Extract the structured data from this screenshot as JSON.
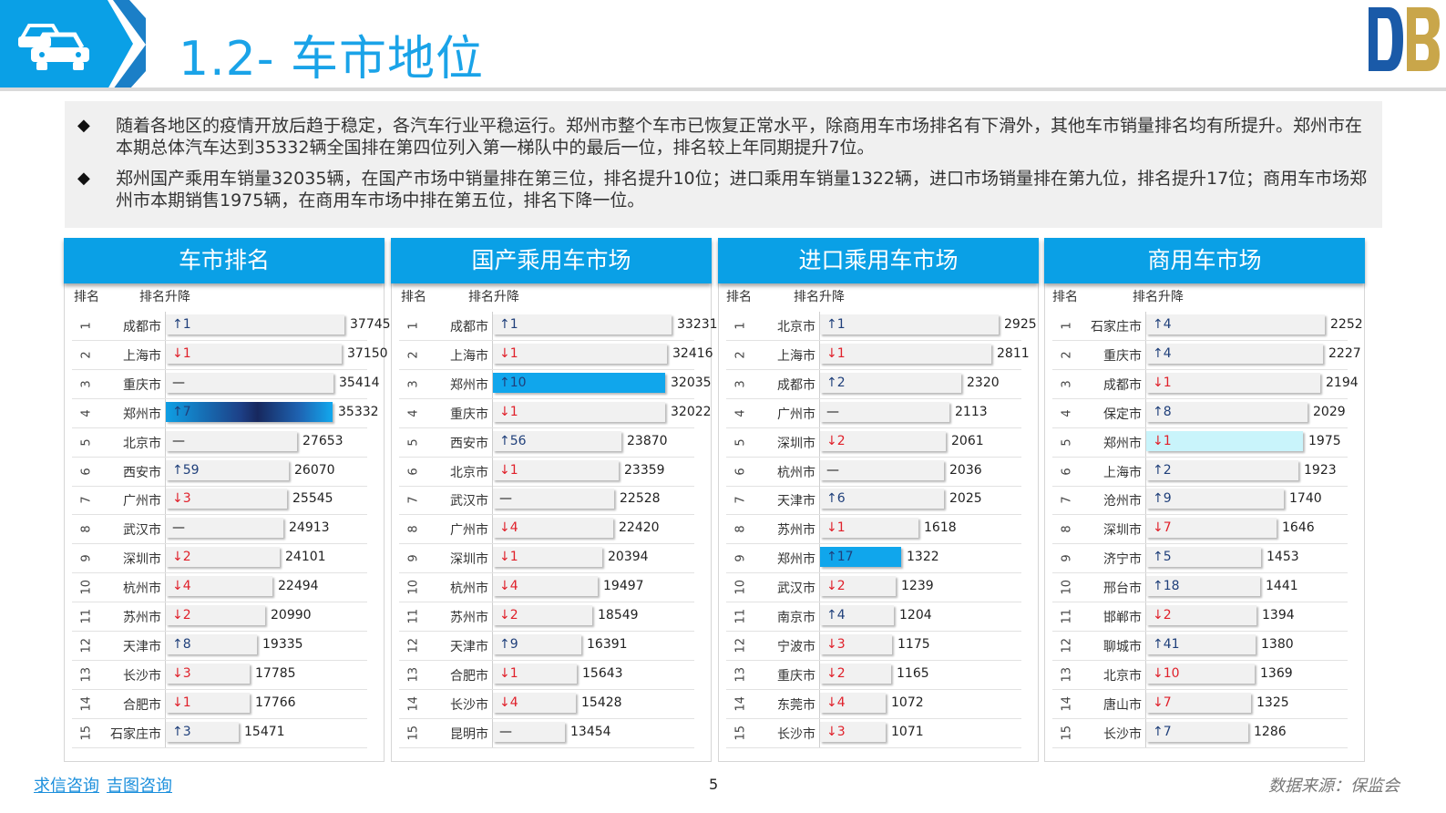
{
  "header": {
    "title": "1.2- 车市地位",
    "colors": {
      "accent": "#1aa3e8",
      "banner": "#0aa0e6",
      "banner_dark": "#1b7fc7"
    },
    "icon": "car-icon",
    "logo": "logo-mark"
  },
  "summary": {
    "bullets": [
      {
        "marker": "◆",
        "text": "随着各地区的疫情开放后趋于稳定，各汽车行业平稳运行。郑州市整个车市已恢复正常水平，除商用车市场排名有下滑外，其他车市销量排名均有所提升。郑州市在本期总体汽车达到35332辆全国排在第四位列入第一梯队中的最后一位，排名较上年同期提升7位。"
      },
      {
        "marker": "◆",
        "text": "郑州国产乘用车销量32035辆，在国产市场中销量排在第三位，排名提升10位；进口乘用车销量1322辆，进口市场销量排在第九位，排名提升17位；商用车市场郑州市本期销售1975辆，在商用车市场中排在第五位，排名下降一位。"
      }
    ]
  },
  "panels": [
    {
      "title": "车市排名",
      "col_rank": "排名",
      "col_change": "排名升降",
      "max": 37745,
      "rows": [
        {
          "rank": "1",
          "city": "成都市",
          "change": "↑1",
          "dir": "up",
          "value": 37745
        },
        {
          "rank": "2",
          "city": "上海市",
          "change": "↓1",
          "dir": "down",
          "value": 37150
        },
        {
          "rank": "3",
          "city": "重庆市",
          "change": "—",
          "dir": "flat",
          "value": 35414
        },
        {
          "rank": "4",
          "city": "郑州市",
          "change": "↑7",
          "dir": "up",
          "value": 35332,
          "highlight": "grad"
        },
        {
          "rank": "5",
          "city": "北京市",
          "change": "—",
          "dir": "flat",
          "value": 27653
        },
        {
          "rank": "6",
          "city": "西安市",
          "change": "↑59",
          "dir": "up",
          "value": 26070
        },
        {
          "rank": "7",
          "city": "广州市",
          "change": "↓3",
          "dir": "down",
          "value": 25545
        },
        {
          "rank": "8",
          "city": "武汉市",
          "change": "—",
          "dir": "flat",
          "value": 24913
        },
        {
          "rank": "9",
          "city": "深圳市",
          "change": "↓2",
          "dir": "down",
          "value": 24101
        },
        {
          "rank": "10",
          "city": "杭州市",
          "change": "↓4",
          "dir": "down",
          "value": 22494
        },
        {
          "rank": "11",
          "city": "苏州市",
          "change": "↓2",
          "dir": "down",
          "value": 20990
        },
        {
          "rank": "12",
          "city": "天津市",
          "change": "↑8",
          "dir": "up",
          "value": 19335
        },
        {
          "rank": "13",
          "city": "长沙市",
          "change": "↓3",
          "dir": "down",
          "value": 17785
        },
        {
          "rank": "14",
          "city": "合肥市",
          "change": "↓1",
          "dir": "down",
          "value": 17766
        },
        {
          "rank": "15",
          "city": "石家庄市",
          "change": "↑3",
          "dir": "up",
          "value": 15471
        }
      ]
    },
    {
      "title": "国产乘用车市场",
      "col_rank": "排名",
      "col_change": "排名升降",
      "max": 33231,
      "rows": [
        {
          "rank": "1",
          "city": "成都市",
          "change": "↑1",
          "dir": "up",
          "value": 33231
        },
        {
          "rank": "2",
          "city": "上海市",
          "change": "↓1",
          "dir": "down",
          "value": 32416
        },
        {
          "rank": "3",
          "city": "郑州市",
          "change": "↑10",
          "dir": "up",
          "value": 32035,
          "highlight": "blue"
        },
        {
          "rank": "4",
          "city": "重庆市",
          "change": "↓1",
          "dir": "down",
          "value": 32022
        },
        {
          "rank": "5",
          "city": "西安市",
          "change": "↑56",
          "dir": "up",
          "value": 23870
        },
        {
          "rank": "6",
          "city": "北京市",
          "change": "↓1",
          "dir": "down",
          "value": 23359
        },
        {
          "rank": "7",
          "city": "武汉市",
          "change": "—",
          "dir": "flat",
          "value": 22528
        },
        {
          "rank": "8",
          "city": "广州市",
          "change": "↓4",
          "dir": "down",
          "value": 22420
        },
        {
          "rank": "9",
          "city": "深圳市",
          "change": "↓1",
          "dir": "down",
          "value": 20394
        },
        {
          "rank": "10",
          "city": "杭州市",
          "change": "↓4",
          "dir": "down",
          "value": 19497
        },
        {
          "rank": "11",
          "city": "苏州市",
          "change": "↓2",
          "dir": "down",
          "value": 18549
        },
        {
          "rank": "12",
          "city": "天津市",
          "change": "↑9",
          "dir": "up",
          "value": 16391
        },
        {
          "rank": "13",
          "city": "合肥市",
          "change": "↓1",
          "dir": "down",
          "value": 15643
        },
        {
          "rank": "14",
          "city": "长沙市",
          "change": "↓4",
          "dir": "down",
          "value": 15428
        },
        {
          "rank": "15",
          "city": "昆明市",
          "change": "—",
          "dir": "flat",
          "value": 13454
        }
      ]
    },
    {
      "title": "进口乘用车市场",
      "col_rank": "排名",
      "col_change": "排名升降",
      "max": 2925,
      "rows": [
        {
          "rank": "1",
          "city": "北京市",
          "change": "↑1",
          "dir": "up",
          "value": 2925
        },
        {
          "rank": "2",
          "city": "上海市",
          "change": "↓1",
          "dir": "down",
          "value": 2811
        },
        {
          "rank": "3",
          "city": "成都市",
          "change": "↑2",
          "dir": "up",
          "value": 2320
        },
        {
          "rank": "4",
          "city": "广州市",
          "change": "—",
          "dir": "flat",
          "value": 2113
        },
        {
          "rank": "5",
          "city": "深圳市",
          "change": "↓2",
          "dir": "down",
          "value": 2061
        },
        {
          "rank": "6",
          "city": "杭州市",
          "change": "—",
          "dir": "flat",
          "value": 2036
        },
        {
          "rank": "7",
          "city": "天津市",
          "change": "↑6",
          "dir": "up",
          "value": 2025
        },
        {
          "rank": "8",
          "city": "苏州市",
          "change": "↓1",
          "dir": "down",
          "value": 1618
        },
        {
          "rank": "9",
          "city": "郑州市",
          "change": "↑17",
          "dir": "up",
          "value": 1322,
          "highlight": "blue"
        },
        {
          "rank": "10",
          "city": "武汉市",
          "change": "↓2",
          "dir": "down",
          "value": 1239
        },
        {
          "rank": "11",
          "city": "南京市",
          "change": "↑4",
          "dir": "up",
          "value": 1204
        },
        {
          "rank": "12",
          "city": "宁波市",
          "change": "↓3",
          "dir": "down",
          "value": 1175
        },
        {
          "rank": "13",
          "city": "重庆市",
          "change": "↓2",
          "dir": "down",
          "value": 1165
        },
        {
          "rank": "14",
          "city": "东莞市",
          "change": "↓4",
          "dir": "down",
          "value": 1072
        },
        {
          "rank": "15",
          "city": "长沙市",
          "change": "↓3",
          "dir": "down",
          "value": 1071
        }
      ]
    },
    {
      "title": "商用车市场",
      "col_rank": "排名",
      "col_change": "排名升降",
      "max": 2252,
      "rows": [
        {
          "rank": "1",
          "city": "石家庄市",
          "change": "↑4",
          "dir": "up",
          "value": 2252
        },
        {
          "rank": "2",
          "city": "重庆市",
          "change": "↑4",
          "dir": "up",
          "value": 2227
        },
        {
          "rank": "3",
          "city": "成都市",
          "change": "↓1",
          "dir": "down",
          "value": 2194
        },
        {
          "rank": "4",
          "city": "保定市",
          "change": "↑8",
          "dir": "up",
          "value": 2029
        },
        {
          "rank": "5",
          "city": "郑州市",
          "change": "↓1",
          "dir": "down",
          "value": 1975,
          "highlight": "cyan"
        },
        {
          "rank": "6",
          "city": "上海市",
          "change": "↑2",
          "dir": "up",
          "value": 1923
        },
        {
          "rank": "7",
          "city": "沧州市",
          "change": "↑9",
          "dir": "up",
          "value": 1740
        },
        {
          "rank": "8",
          "city": "深圳市",
          "change": "↓7",
          "dir": "down",
          "value": 1646
        },
        {
          "rank": "9",
          "city": "济宁市",
          "change": "↑5",
          "dir": "up",
          "value": 1453
        },
        {
          "rank": "10",
          "city": "邢台市",
          "change": "↑18",
          "dir": "up",
          "value": 1441
        },
        {
          "rank": "11",
          "city": "邯郸市",
          "change": "↓2",
          "dir": "down",
          "value": 1394
        },
        {
          "rank": "12",
          "city": "聊城市",
          "change": "↑41",
          "dir": "up",
          "value": 1380
        },
        {
          "rank": "13",
          "city": "北京市",
          "change": "↓10",
          "dir": "down",
          "value": 1369
        },
        {
          "rank": "14",
          "city": "唐山市",
          "change": "↓7",
          "dir": "down",
          "value": 1325
        },
        {
          "rank": "15",
          "city": "长沙市",
          "change": "↑7",
          "dir": "up",
          "value": 1286
        }
      ]
    }
  ],
  "footer": {
    "link1": "求信咨询",
    "link2": "吉图咨询",
    "page": "5",
    "source": "数据来源：保监会"
  }
}
